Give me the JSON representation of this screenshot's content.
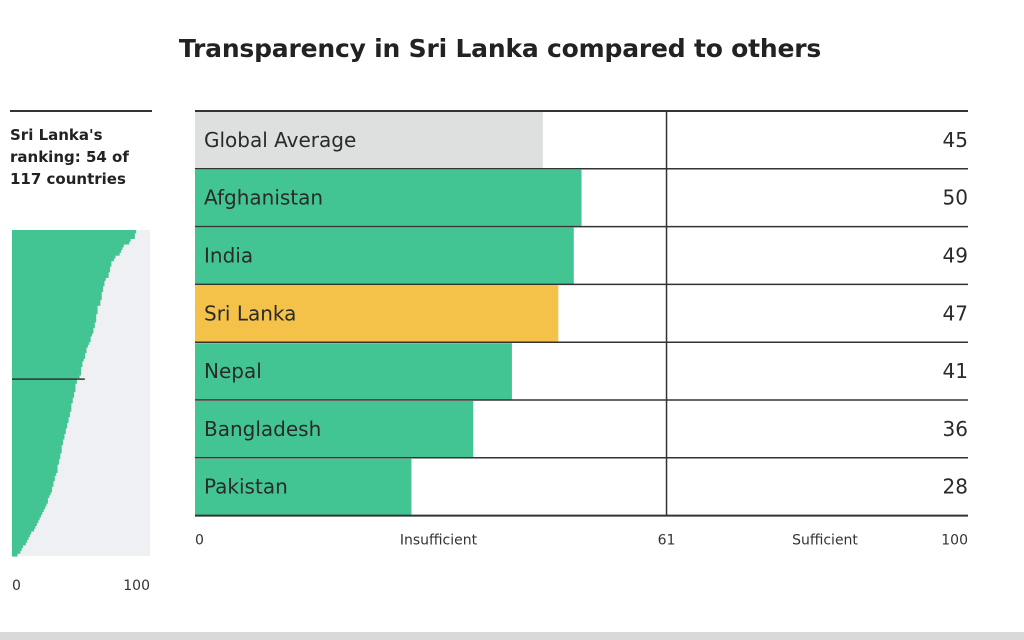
{
  "chart_data": [
    {
      "type": "bar",
      "orientation": "horizontal",
      "title": "Transparency in Sri Lanka compared to others",
      "categories": [
        "Global Average",
        "Afghanistan",
        "India",
        "Sri Lanka",
        "Nepal",
        "Bangladesh",
        "Pakistan"
      ],
      "values": [
        45,
        50,
        49,
        47,
        41,
        36,
        28
      ],
      "highlight": {
        "category": "Sri Lanka",
        "color": "#f5c249"
      },
      "reference_category": {
        "category": "Global Average",
        "color": "#dde0de"
      },
      "bar_color": "#42c592",
      "xlim": [
        0,
        100
      ],
      "threshold": {
        "value": 61,
        "label": "61"
      },
      "axis_ticks": {
        "min_label": "0",
        "max_label": "100"
      },
      "zone_labels": {
        "below": "Insufficient",
        "above": "Sufficient"
      }
    },
    {
      "type": "area",
      "description_label": "Sri Lanka's ranking: 54 of 117 countries",
      "rank": 54,
      "total_countries": 117,
      "xlim": [
        0,
        100
      ],
      "x_tick_labels": [
        "0",
        "100"
      ],
      "fill_color": "#42c592",
      "background_color": "#eff0f3",
      "sorted_scores": [
        90,
        89,
        89,
        86,
        85,
        81,
        80,
        79,
        78,
        75,
        74,
        72,
        72,
        71,
        71,
        70,
        70,
        68,
        67,
        67,
        66,
        66,
        65,
        65,
        65,
        64,
        64,
        62,
        62,
        62,
        61,
        61,
        61,
        60,
        60,
        59,
        59,
        58,
        57,
        57,
        56,
        55,
        54,
        54,
        53,
        53,
        52,
        51,
        51,
        50,
        50,
        50,
        49,
        47,
        47,
        46,
        46,
        46,
        45,
        45,
        44,
        44,
        43,
        43,
        43,
        42,
        42,
        41,
        41,
        40,
        40,
        39,
        39,
        38,
        38,
        37,
        37,
        36,
        36,
        36,
        35,
        35,
        34,
        34,
        33,
        33,
        33,
        32,
        31,
        31,
        30,
        30,
        29,
        29,
        28,
        27,
        26,
        26,
        25,
        24,
        23,
        22,
        21,
        20,
        19,
        18,
        17,
        16,
        14,
        13,
        12,
        11,
        10,
        8,
        7,
        6,
        4
      ]
    }
  ]
}
